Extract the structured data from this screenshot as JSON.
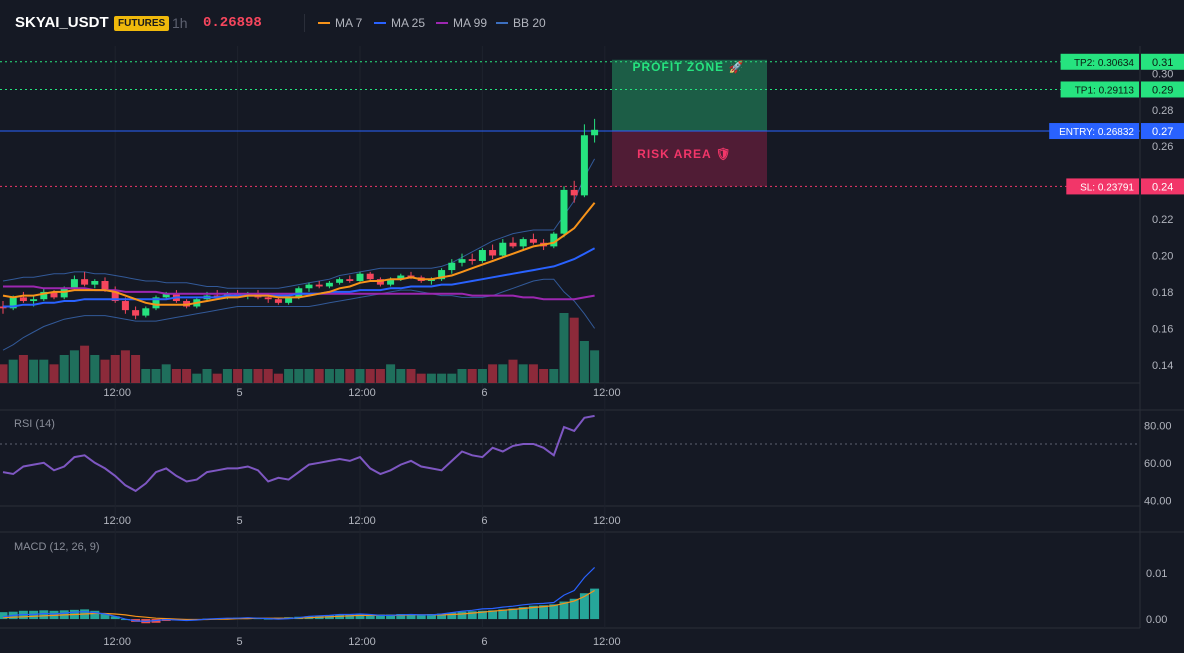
{
  "header": {
    "symbol": "SKYAI_USDT",
    "badge": "FUTURES",
    "interval": "1h",
    "last_price": "0.26898",
    "indicators": [
      {
        "label": "MA 7",
        "color": "#f7931a"
      },
      {
        "label": "MA 25",
        "color": "#2962ff"
      },
      {
        "label": "MA 99",
        "color": "#9c27b0"
      },
      {
        "label": "BB 20",
        "color": "#3c6fbf"
      }
    ]
  },
  "colors": {
    "up": "#26e37f",
    "down": "#f6465d",
    "volume_up": "#1f6f5c",
    "volume_down": "#8c2a3a",
    "entry": "#2962ff",
    "stop": "#f23669",
    "target": "#26e37f"
  },
  "zones": {
    "profit_label": "PROFIT ZONE 🚀",
    "risk_label": "RISK AREA 🛡"
  },
  "levels": [
    {
      "label": "TP2: 0.30634",
      "value": 0.30634,
      "kind": "target"
    },
    {
      "label": "TP1: 0.29113",
      "value": 0.29113,
      "kind": "target"
    },
    {
      "label": "ENTRY: 0.26832",
      "value": 0.26832,
      "kind": "entry"
    },
    {
      "label": "SL: 0.23791",
      "value": 0.23791,
      "kind": "stop"
    }
  ],
  "price_axis": {
    "ticks": [
      "0.14",
      "0.16",
      "0.18",
      "0.20",
      "0.22",
      "0.24",
      "0.26",
      "0.27",
      "0.28",
      "0.29",
      "0.30",
      "0.31"
    ],
    "range": [
      0.13,
      0.315
    ]
  },
  "time_axis": {
    "ticks": [
      {
        "label": "12:00",
        "bar": 11
      },
      {
        "label": "5",
        "bar": 23
      },
      {
        "label": "12:00",
        "bar": 35
      },
      {
        "label": "6",
        "bar": 47
      },
      {
        "label": "12:00",
        "bar": 59
      }
    ]
  },
  "rsi": {
    "title": "RSI (14)",
    "ticks": [
      "80.00",
      "60.00",
      "40.00"
    ],
    "range": [
      38,
      86
    ],
    "overbought": 70
  },
  "macd": {
    "title": "MACD (12, 26, 9)",
    "ticks": [
      "0.01",
      "0.00"
    ],
    "range": [
      -0.0015,
      0.018
    ]
  },
  "chart_data": {
    "type": "candlestick",
    "bar_interval": "1h",
    "ohlc": [
      [
        0.172,
        0.175,
        0.168,
        0.171
      ],
      [
        0.171,
        0.178,
        0.17,
        0.177
      ],
      [
        0.177,
        0.18,
        0.174,
        0.175
      ],
      [
        0.175,
        0.178,
        0.172,
        0.176
      ],
      [
        0.176,
        0.182,
        0.175,
        0.18
      ],
      [
        0.18,
        0.181,
        0.176,
        0.177
      ],
      [
        0.177,
        0.183,
        0.176,
        0.182
      ],
      [
        0.182,
        0.189,
        0.181,
        0.187
      ],
      [
        0.187,
        0.191,
        0.183,
        0.184
      ],
      [
        0.184,
        0.187,
        0.182,
        0.186
      ],
      [
        0.186,
        0.188,
        0.18,
        0.181
      ],
      [
        0.181,
        0.183,
        0.174,
        0.175
      ],
      [
        0.175,
        0.177,
        0.168,
        0.17
      ],
      [
        0.17,
        0.172,
        0.165,
        0.167
      ],
      [
        0.167,
        0.172,
        0.166,
        0.171
      ],
      [
        0.171,
        0.178,
        0.17,
        0.177
      ],
      [
        0.177,
        0.18,
        0.176,
        0.179
      ],
      [
        0.179,
        0.181,
        0.174,
        0.175
      ],
      [
        0.175,
        0.176,
        0.171,
        0.172
      ],
      [
        0.172,
        0.177,
        0.171,
        0.176
      ],
      [
        0.176,
        0.18,
        0.175,
        0.178
      ],
      [
        0.178,
        0.181,
        0.176,
        0.177
      ],
      [
        0.177,
        0.18,
        0.176,
        0.179
      ],
      [
        0.179,
        0.181,
        0.177,
        0.178
      ],
      [
        0.178,
        0.18,
        0.176,
        0.179
      ],
      [
        0.179,
        0.181,
        0.176,
        0.177
      ],
      [
        0.177,
        0.179,
        0.174,
        0.176
      ],
      [
        0.176,
        0.178,
        0.173,
        0.174
      ],
      [
        0.174,
        0.178,
        0.173,
        0.177
      ],
      [
        0.177,
        0.183,
        0.176,
        0.182
      ],
      [
        0.182,
        0.185,
        0.18,
        0.184
      ],
      [
        0.184,
        0.186,
        0.182,
        0.183
      ],
      [
        0.183,
        0.186,
        0.182,
        0.185
      ],
      [
        0.185,
        0.188,
        0.184,
        0.187
      ],
      [
        0.187,
        0.189,
        0.185,
        0.186
      ],
      [
        0.186,
        0.191,
        0.185,
        0.19
      ],
      [
        0.19,
        0.191,
        0.186,
        0.187
      ],
      [
        0.187,
        0.188,
        0.183,
        0.184
      ],
      [
        0.184,
        0.188,
        0.183,
        0.187
      ],
      [
        0.187,
        0.19,
        0.186,
        0.189
      ],
      [
        0.189,
        0.191,
        0.187,
        0.188
      ],
      [
        0.188,
        0.189,
        0.185,
        0.186
      ],
      [
        0.186,
        0.188,
        0.184,
        0.187
      ],
      [
        0.187,
        0.193,
        0.186,
        0.192
      ],
      [
        0.192,
        0.198,
        0.19,
        0.196
      ],
      [
        0.196,
        0.201,
        0.194,
        0.198
      ],
      [
        0.198,
        0.201,
        0.195,
        0.197
      ],
      [
        0.197,
        0.204,
        0.196,
        0.203
      ],
      [
        0.203,
        0.206,
        0.198,
        0.2
      ],
      [
        0.2,
        0.209,
        0.199,
        0.207
      ],
      [
        0.207,
        0.21,
        0.204,
        0.205
      ],
      [
        0.205,
        0.21,
        0.203,
        0.209
      ],
      [
        0.209,
        0.212,
        0.206,
        0.207
      ],
      [
        0.207,
        0.209,
        0.203,
        0.205
      ],
      [
        0.205,
        0.213,
        0.204,
        0.212
      ],
      [
        0.212,
        0.238,
        0.21,
        0.236
      ],
      [
        0.236,
        0.241,
        0.229,
        0.233
      ],
      [
        0.233,
        0.272,
        0.232,
        0.266
      ],
      [
        0.266,
        0.275,
        0.262,
        0.269
      ]
    ],
    "volume": [
      4,
      5,
      6,
      5,
      5,
      4,
      6,
      7,
      8,
      6,
      5,
      6,
      7,
      6,
      3,
      3,
      4,
      3,
      3,
      2,
      3,
      2,
      3,
      3,
      3,
      3,
      3,
      2,
      3,
      3,
      3,
      3,
      3,
      3,
      3,
      3,
      3,
      3,
      4,
      3,
      3,
      2,
      2,
      2,
      2,
      3,
      3,
      3,
      4,
      4,
      5,
      4,
      4,
      3,
      3,
      15,
      14,
      9,
      7
    ],
    "ma7": [
      0.178,
      0.177,
      0.178,
      0.178,
      0.179,
      0.18,
      0.18,
      0.181,
      0.181,
      0.181,
      0.181,
      0.18,
      0.178,
      0.176,
      0.174,
      0.173,
      0.173,
      0.173,
      0.173,
      0.174,
      0.175,
      0.176,
      0.177,
      0.177,
      0.178,
      0.178,
      0.178,
      0.177,
      0.177,
      0.177,
      0.178,
      0.179,
      0.18,
      0.182,
      0.183,
      0.185,
      0.186,
      0.186,
      0.187,
      0.187,
      0.188,
      0.187,
      0.187,
      0.188,
      0.189,
      0.191,
      0.193,
      0.195,
      0.197,
      0.199,
      0.201,
      0.203,
      0.205,
      0.206,
      0.207,
      0.211,
      0.215,
      0.222,
      0.229
    ],
    "ma25": [
      0.172,
      0.172,
      0.173,
      0.173,
      0.174,
      0.174,
      0.175,
      0.175,
      0.176,
      0.176,
      0.176,
      0.176,
      0.176,
      0.176,
      0.176,
      0.176,
      0.176,
      0.177,
      0.177,
      0.177,
      0.177,
      0.177,
      0.178,
      0.178,
      0.178,
      0.178,
      0.178,
      0.178,
      0.178,
      0.179,
      0.179,
      0.179,
      0.18,
      0.18,
      0.18,
      0.181,
      0.181,
      0.181,
      0.182,
      0.182,
      0.183,
      0.183,
      0.183,
      0.184,
      0.184,
      0.185,
      0.186,
      0.187,
      0.188,
      0.189,
      0.19,
      0.191,
      0.192,
      0.193,
      0.194,
      0.196,
      0.198,
      0.201,
      0.204
    ],
    "ma99": [
      0.183,
      0.183,
      0.183,
      0.183,
      0.182,
      0.182,
      0.182,
      0.182,
      0.182,
      0.181,
      0.181,
      0.181,
      0.18,
      0.18,
      0.18,
      0.18,
      0.179,
      0.179,
      0.179,
      0.179,
      0.179,
      0.179,
      0.179,
      0.179,
      0.179,
      0.179,
      0.179,
      0.179,
      0.179,
      0.179,
      0.179,
      0.179,
      0.179,
      0.179,
      0.179,
      0.179,
      0.179,
      0.179,
      0.179,
      0.179,
      0.179,
      0.179,
      0.179,
      0.179,
      0.179,
      0.179,
      0.178,
      0.178,
      0.178,
      0.178,
      0.178,
      0.177,
      0.177,
      0.176,
      0.176,
      0.176,
      0.176,
      0.177,
      0.178
    ],
    "bb_upper": [
      0.186,
      0.187,
      0.188,
      0.188,
      0.189,
      0.19,
      0.19,
      0.191,
      0.191,
      0.19,
      0.19,
      0.189,
      0.188,
      0.187,
      0.186,
      0.186,
      0.185,
      0.185,
      0.185,
      0.184,
      0.183,
      0.183,
      0.182,
      0.182,
      0.182,
      0.182,
      0.182,
      0.182,
      0.183,
      0.184,
      0.185,
      0.186,
      0.187,
      0.189,
      0.19,
      0.191,
      0.192,
      0.193,
      0.193,
      0.193,
      0.193,
      0.193,
      0.193,
      0.194,
      0.196,
      0.199,
      0.202,
      0.205,
      0.208,
      0.21,
      0.212,
      0.213,
      0.214,
      0.214,
      0.214,
      0.222,
      0.23,
      0.243,
      0.253
    ],
    "bb_lower": [
      0.148,
      0.151,
      0.155,
      0.158,
      0.161,
      0.163,
      0.165,
      0.166,
      0.167,
      0.167,
      0.167,
      0.166,
      0.165,
      0.164,
      0.164,
      0.164,
      0.165,
      0.166,
      0.167,
      0.168,
      0.169,
      0.17,
      0.171,
      0.172,
      0.172,
      0.172,
      0.172,
      0.172,
      0.172,
      0.172,
      0.172,
      0.173,
      0.174,
      0.175,
      0.176,
      0.177,
      0.178,
      0.179,
      0.18,
      0.181,
      0.181,
      0.18,
      0.179,
      0.178,
      0.178,
      0.177,
      0.177,
      0.177,
      0.178,
      0.18,
      0.182,
      0.184,
      0.186,
      0.187,
      0.187,
      0.18,
      0.175,
      0.168,
      0.16
    ],
    "rsi": [
      55,
      54,
      58,
      59,
      60,
      56,
      58,
      63,
      64,
      60,
      57,
      53,
      48,
      45,
      49,
      55,
      57,
      53,
      50,
      51,
      55,
      56,
      57,
      57,
      58,
      56,
      50,
      52,
      51,
      55,
      59,
      60,
      61,
      62,
      61,
      63,
      57,
      54,
      56,
      59,
      61,
      58,
      57,
      56,
      61,
      66,
      64,
      63,
      68,
      66,
      69,
      70,
      70,
      68,
      64,
      79,
      77,
      84,
      85
    ],
    "macd_line": [
      0.0005,
      0.0008,
      0.001,
      0.001,
      0.0012,
      0.0011,
      0.0013,
      0.0015,
      0.0016,
      0.0014,
      0.0011,
      0.0006,
      0.0,
      -0.0004,
      -0.0005,
      -0.0003,
      -0.0001,
      -0.0002,
      -0.0003,
      -0.0002,
      0.0,
      0.0001,
      0.0002,
      0.0002,
      0.0003,
      0.0002,
      0.0001,
      0.0,
      0.0001,
      0.0003,
      0.0006,
      0.0007,
      0.0008,
      0.001,
      0.001,
      0.0011,
      0.001,
      0.0008,
      0.0008,
      0.0009,
      0.001,
      0.0009,
      0.0009,
      0.0011,
      0.0014,
      0.0017,
      0.0019,
      0.0022,
      0.0023,
      0.0026,
      0.0028,
      0.0031,
      0.0033,
      0.0034,
      0.0036,
      0.0052,
      0.0062,
      0.009,
      0.0112
    ],
    "signal_line": [
      0.0003,
      0.0004,
      0.0005,
      0.0006,
      0.0007,
      0.0008,
      0.0009,
      0.001,
      0.0011,
      0.0012,
      0.0012,
      0.0011,
      0.0009,
      0.0006,
      0.0004,
      0.0002,
      0.0001,
      0.0,
      -0.0001,
      -0.0001,
      -0.0001,
      0.0,
      0.0,
      0.0001,
      0.0001,
      0.0002,
      0.0002,
      0.0002,
      0.0002,
      0.0002,
      0.0003,
      0.0004,
      0.0005,
      0.0006,
      0.0007,
      0.0008,
      0.0008,
      0.0008,
      0.0008,
      0.0008,
      0.0009,
      0.0009,
      0.0009,
      0.0009,
      0.001,
      0.0011,
      0.0013,
      0.0015,
      0.0017,
      0.0019,
      0.0021,
      0.0023,
      0.0025,
      0.0027,
      0.0029,
      0.0034,
      0.0039,
      0.0049,
      0.0062
    ],
    "histogram": [
      0.0015,
      0.0016,
      0.0018,
      0.0018,
      0.0019,
      0.0018,
      0.0019,
      0.002,
      0.0021,
      0.0018,
      0.0013,
      0.0006,
      0.0,
      -0.0006,
      -0.0009,
      -0.0008,
      -0.0004,
      -0.0003,
      -0.0003,
      -0.0002,
      0.0001,
      0.0001,
      0.0002,
      0.0003,
      0.0003,
      0.0002,
      0.0001,
      0.0003,
      0.0004,
      0.0005,
      0.0006,
      0.0007,
      0.0008,
      0.0009,
      0.0009,
      0.001,
      0.001,
      0.001,
      0.001,
      0.0011,
      0.0011,
      0.001,
      0.0011,
      0.0012,
      0.0014,
      0.0016,
      0.0017,
      0.0018,
      0.0019,
      0.0021,
      0.0023,
      0.0026,
      0.0029,
      0.003,
      0.0032,
      0.0038,
      0.0044,
      0.0056,
      0.0066
    ]
  }
}
